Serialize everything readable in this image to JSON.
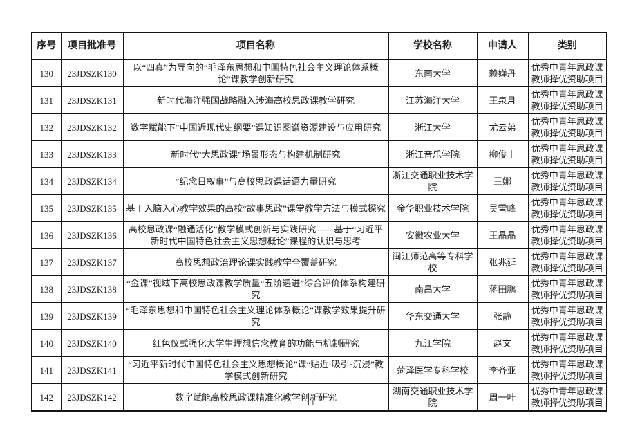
{
  "table": {
    "headers": [
      "序号",
      "项目批准号",
      "项目名称",
      "学校名称",
      "申请人",
      "类别"
    ],
    "rows": [
      {
        "no": "130",
        "approval_no": "23JDSZK130",
        "project_name": "以“四真”为导向的“毛泽东思想和中国特色社会主义理论体系概论”课教学创新研究",
        "school": "东南大学",
        "applicant": "赖婵丹",
        "category": "优秀中青年思政课教师择优资助项目"
      },
      {
        "no": "131",
        "approval_no": "23JDSZK131",
        "project_name": "新时代海洋强国战略融入涉海高校思政课教学研究",
        "school": "江苏海洋大学",
        "applicant": "王泉月",
        "category": "优秀中青年思政课教师择优资助项目"
      },
      {
        "no": "132",
        "approval_no": "23JDSZK132",
        "project_name": "数字赋能下“中国近现代史纲要”课知识图谱资源建设与应用研究",
        "school": "浙江大学",
        "applicant": "尤云弟",
        "category": "优秀中青年思政课教师择优资助项目"
      },
      {
        "no": "133",
        "approval_no": "23JDSZK133",
        "project_name": "新时代“大思政课”场景形态与构建机制研究",
        "school": "浙江音乐学院",
        "applicant": "柳俊丰",
        "category": "优秀中青年思政课教师择优资助项目"
      },
      {
        "no": "134",
        "approval_no": "23JDSZK134",
        "project_name": "“纪念日叙事”与高校思政课话语力量研究",
        "school": "浙江交通职业技术学院",
        "applicant": "王娜",
        "category": "优秀中青年思政课教师择优资助项目"
      },
      {
        "no": "135",
        "approval_no": "23JDSZK135",
        "project_name": "基于入脑入心教学效果的高校“故事思政”课堂教学方法与模式探究",
        "school": "金华职业技术学院",
        "applicant": "吴雪峰",
        "category": "优秀中青年思政课教师择优资助项目"
      },
      {
        "no": "136",
        "approval_no": "23JDSZK136",
        "project_name": "高校思政课“融通活化”教学模式创新与实践研究——基于“习近平新时代中国特色社会主义思想概论”课程的认识与思考",
        "school": "安徽农业大学",
        "applicant": "王晶晶",
        "category": "优秀中青年思政课教师择优资助项目"
      },
      {
        "no": "137",
        "approval_no": "23JDSZK137",
        "project_name": "高校思想政治理论课实践教学全覆盖研究",
        "school": "闽江师范高等专科学校",
        "applicant": "张兆延",
        "category": "优秀中青年思政课教师择优资助项目"
      },
      {
        "no": "138",
        "approval_no": "23JDSZK138",
        "project_name": "“金课”视域下高校思政课教学质量“五阶递进”综合评价体系构建研究",
        "school": "南昌大学",
        "applicant": "蒋田鹏",
        "category": "优秀中青年思政课教师择优资助项目"
      },
      {
        "no": "139",
        "approval_no": "23JDSZK139",
        "project_name": "“毛泽东思想和中国特色社会主义理论体系概论”课教学效果提升研究",
        "school": "华东交通大学",
        "applicant": "张静",
        "category": "优秀中青年思政课教师择优资助项目"
      },
      {
        "no": "140",
        "approval_no": "23JDSZK140",
        "project_name": "红色仪式强化大学生理想信念教育的功能与机制研究",
        "school": "九江学院",
        "applicant": "赵文",
        "category": "优秀中青年思政课教师择优资助项目"
      },
      {
        "no": "141",
        "approval_no": "23JDSZK141",
        "project_name": "“习近平新时代中国特色社会主义思想概论”课“贴近·吸引·沉浸”教学模式创新研究",
        "school": "菏泽医学专科学校",
        "applicant": "李齐亚",
        "category": "优秀中青年思政课教师择优资助项目"
      },
      {
        "no": "142",
        "approval_no": "23JDSZK142",
        "project_name": "数字赋能高校思政课精准化教学创新研究",
        "school": "湖南交通职业技术学院",
        "applicant": "周一叶",
        "category": "优秀中青年思政课教师择优资助项目"
      }
    ]
  },
  "footer": {
    "page_number": "11"
  }
}
